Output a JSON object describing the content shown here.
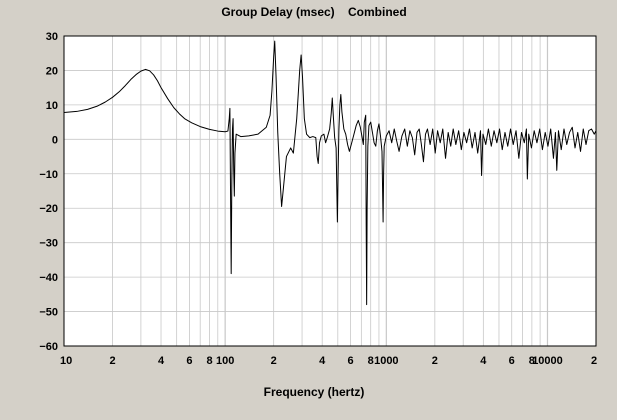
{
  "chart_data": {
    "type": "line",
    "title": "Group Delay (msec)    Combined",
    "xlabel": "Frequency (hertz)",
    "ylabel": "",
    "x_scale": "log",
    "xlim": [
      10,
      20000
    ],
    "ylim": [
      -60,
      30
    ],
    "grid": true,
    "legend": "none",
    "colors": {
      "background": "#d4d0c8",
      "plot_bg": "#ffffff",
      "grid": "#c8c8c8",
      "line": "#000000",
      "text": "#000000"
    },
    "x_ticks": [
      {
        "value": 10,
        "label": "10"
      },
      {
        "value": 20,
        "label": "2"
      },
      {
        "value": 40,
        "label": "4"
      },
      {
        "value": 60,
        "label": "6"
      },
      {
        "value": 80,
        "label": "8"
      },
      {
        "value": 100,
        "label": "100"
      },
      {
        "value": 200,
        "label": "2"
      },
      {
        "value": 400,
        "label": "4"
      },
      {
        "value": 600,
        "label": "6"
      },
      {
        "value": 800,
        "label": "8"
      },
      {
        "value": 1000,
        "label": "1000"
      },
      {
        "value": 2000,
        "label": "2"
      },
      {
        "value": 4000,
        "label": "4"
      },
      {
        "value": 6000,
        "label": "6"
      },
      {
        "value": 8000,
        "label": "8"
      },
      {
        "value": 10000,
        "label": "10000"
      },
      {
        "value": 20000,
        "label": "2"
      }
    ],
    "y_ticks": [
      {
        "value": 30,
        "label": "30"
      },
      {
        "value": 20,
        "label": "20"
      },
      {
        "value": 10,
        "label": "10"
      },
      {
        "value": 0,
        "label": "0"
      },
      {
        "value": -10,
        "label": "−10"
      },
      {
        "value": -20,
        "label": "−20"
      },
      {
        "value": -30,
        "label": "−30"
      },
      {
        "value": -40,
        "label": "−40"
      },
      {
        "value": -50,
        "label": "−50"
      },
      {
        "value": -60,
        "label": "−60"
      }
    ],
    "series": [
      {
        "points": [
          [
            10,
            7.8
          ],
          [
            12,
            8.1
          ],
          [
            14,
            8.7
          ],
          [
            16,
            9.6
          ],
          [
            18,
            10.8
          ],
          [
            20,
            12.2
          ],
          [
            22,
            13.8
          ],
          [
            24,
            15.6
          ],
          [
            26,
            17.4
          ],
          [
            28,
            18.8
          ],
          [
            30,
            19.8
          ],
          [
            32,
            20.3
          ],
          [
            34,
            19.9
          ],
          [
            36,
            18.7
          ],
          [
            38,
            17.0
          ],
          [
            40,
            15.0
          ],
          [
            44,
            11.8
          ],
          [
            48,
            9.2
          ],
          [
            52,
            7.4
          ],
          [
            56,
            6.0
          ],
          [
            62,
            4.8
          ],
          [
            70,
            3.7
          ],
          [
            80,
            2.9
          ],
          [
            90,
            2.4
          ],
          [
            100,
            2.2
          ],
          [
            104,
            2.4
          ],
          [
            106,
            6.0
          ],
          [
            107,
            9.0
          ],
          [
            108,
            -16.0
          ],
          [
            109,
            -39.0
          ],
          [
            110,
            -12.0
          ],
          [
            111,
            3.0
          ],
          [
            112,
            6.0
          ],
          [
            113,
            -9.0
          ],
          [
            114,
            -16.5
          ],
          [
            115,
            -4.0
          ],
          [
            117,
            1.5
          ],
          [
            125,
            0.8
          ],
          [
            140,
            1.0
          ],
          [
            160,
            1.5
          ],
          [
            180,
            3.5
          ],
          [
            190,
            7.0
          ],
          [
            195,
            14.0
          ],
          [
            200,
            24.0
          ],
          [
            203,
            28.5
          ],
          [
            207,
            18.0
          ],
          [
            212,
            2.0
          ],
          [
            218,
            -10.0
          ],
          [
            224,
            -19.5
          ],
          [
            230,
            -14.0
          ],
          [
            240,
            -5.0
          ],
          [
            255,
            -2.5
          ],
          [
            265,
            -4.0
          ],
          [
            272,
            1.5
          ],
          [
            278,
            6.0
          ],
          [
            284,
            13.0
          ],
          [
            290,
            20.0
          ],
          [
            296,
            24.5
          ],
          [
            302,
            18.0
          ],
          [
            310,
            6.0
          ],
          [
            320,
            1.5
          ],
          [
            335,
            0.5
          ],
          [
            350,
            0.8
          ],
          [
            365,
            0.5
          ],
          [
            372,
            -5.0
          ],
          [
            378,
            -7.0
          ],
          [
            385,
            -1.0
          ],
          [
            395,
            1.0
          ],
          [
            410,
            1.5
          ],
          [
            420,
            -1.0
          ],
          [
            430,
            0.5
          ],
          [
            445,
            3.0
          ],
          [
            455,
            7.5
          ],
          [
            462,
            12.0
          ],
          [
            470,
            6.0
          ],
          [
            478,
            0.5
          ],
          [
            488,
            -2.5
          ],
          [
            497,
            -24.0
          ],
          [
            502,
            -10.0
          ],
          [
            508,
            3.0
          ],
          [
            515,
            10.0
          ],
          [
            522,
            13.0
          ],
          [
            530,
            8.0
          ],
          [
            545,
            3.0
          ],
          [
            560,
            1.5
          ],
          [
            575,
            -1.5
          ],
          [
            590,
            -3.5
          ],
          [
            610,
            -1.0
          ],
          [
            630,
            1.5
          ],
          [
            650,
            4.0
          ],
          [
            670,
            5.5
          ],
          [
            690,
            3.5
          ],
          [
            705,
            1.0
          ],
          [
            720,
            -1.5
          ],
          [
            730,
            5.0
          ],
          [
            745,
            7.0
          ],
          [
            750,
            -25.0
          ],
          [
            755,
            -48.0
          ],
          [
            760,
            -20.0
          ],
          [
            768,
            -2.0
          ],
          [
            780,
            4.0
          ],
          [
            800,
            5.0
          ],
          [
            820,
            2.0
          ],
          [
            840,
            -1.0
          ],
          [
            860,
            -2.0
          ],
          [
            880,
            2.5
          ],
          [
            900,
            4.5
          ],
          [
            920,
            1.0
          ],
          [
            940,
            -3.5
          ],
          [
            955,
            -24.0
          ],
          [
            962,
            -10.0
          ],
          [
            970,
            -2.0
          ],
          [
            1000,
            1.0
          ],
          [
            1040,
            2.5
          ],
          [
            1080,
            -1.0
          ],
          [
            1120,
            3.0
          ],
          [
            1160,
            -0.5
          ],
          [
            1200,
            -3.5
          ],
          [
            1250,
            1.0
          ],
          [
            1300,
            3.0
          ],
          [
            1350,
            -2.0
          ],
          [
            1400,
            2.5
          ],
          [
            1450,
            0.5
          ],
          [
            1500,
            -4.5
          ],
          [
            1550,
            2.0
          ],
          [
            1600,
            3.0
          ],
          [
            1650,
            -1.5
          ],
          [
            1700,
            -6.5
          ],
          [
            1750,
            1.5
          ],
          [
            1800,
            3.0
          ],
          [
            1870,
            -1.5
          ],
          [
            1940,
            3.0
          ],
          [
            2010,
            -4.0
          ],
          [
            2080,
            2.5
          ],
          [
            2160,
            -1.0
          ],
          [
            2240,
            3.0
          ],
          [
            2330,
            -5.5
          ],
          [
            2420,
            2.0
          ],
          [
            2510,
            -2.0
          ],
          [
            2600,
            3.0
          ],
          [
            2700,
            -1.5
          ],
          [
            2810,
            2.5
          ],
          [
            2920,
            -3.0
          ],
          [
            3030,
            2.0
          ],
          [
            3150,
            -1.0
          ],
          [
            3280,
            3.0
          ],
          [
            3410,
            -2.5
          ],
          [
            3550,
            2.0
          ],
          [
            3690,
            -4.0
          ],
          [
            3840,
            2.5
          ],
          [
            3900,
            -10.5
          ],
          [
            3980,
            1.5
          ],
          [
            4140,
            -1.5
          ],
          [
            4300,
            3.0
          ],
          [
            4480,
            -2.0
          ],
          [
            4660,
            2.5
          ],
          [
            4850,
            -1.0
          ],
          [
            5040,
            3.0
          ],
          [
            5240,
            -3.0
          ],
          [
            5450,
            2.0
          ],
          [
            5670,
            -2.0
          ],
          [
            5900,
            3.0
          ],
          [
            6130,
            -1.5
          ],
          [
            6380,
            2.5
          ],
          [
            6640,
            -5.5
          ],
          [
            6900,
            2.0
          ],
          [
            7180,
            -1.0
          ],
          [
            7400,
            3.0
          ],
          [
            7500,
            -11.5
          ],
          [
            7650,
            1.5
          ],
          [
            7950,
            -2.5
          ],
          [
            8270,
            2.5
          ],
          [
            8600,
            -1.0
          ],
          [
            8950,
            3.0
          ],
          [
            9300,
            -3.0
          ],
          [
            9680,
            2.0
          ],
          [
            10070,
            -2.0
          ],
          [
            10470,
            3.0
          ],
          [
            10890,
            -5.5
          ],
          [
            11200,
            2.0
          ],
          [
            11420,
            -9.0
          ],
          [
            11700,
            2.5
          ],
          [
            12170,
            -3.0
          ],
          [
            12660,
            3.0
          ],
          [
            13170,
            -1.5
          ],
          [
            13700,
            2.0
          ],
          [
            14250,
            3.5
          ],
          [
            14820,
            -2.5
          ],
          [
            15410,
            2.0
          ],
          [
            16030,
            -3.5
          ],
          [
            16670,
            3.0
          ],
          [
            17340,
            -1.5
          ],
          [
            18030,
            2.5
          ],
          [
            18750,
            3.0
          ],
          [
            19500,
            1.5
          ],
          [
            20000,
            2.5
          ]
        ]
      }
    ]
  }
}
